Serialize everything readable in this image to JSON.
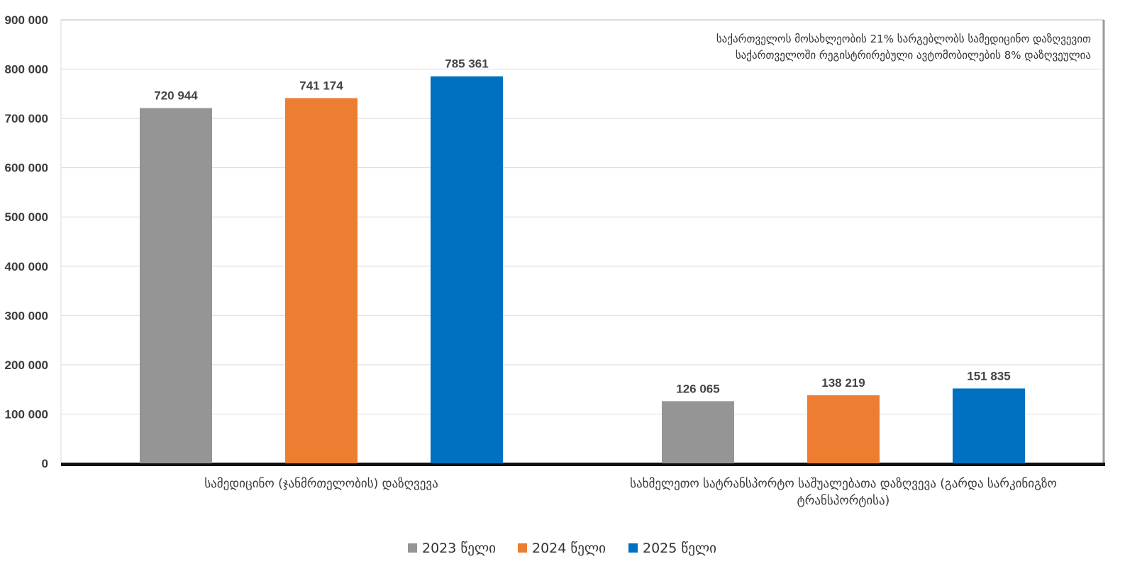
{
  "chart_data": {
    "type": "bar",
    "categories": [
      [
        "სამედიცინო (ჯანმრთელობის) დაზღვევა"
      ],
      [
        "სახმელეთო სატრანსპორტო საშუალებათა დაზღვევა (გარდა სარკინიგზო",
        "ტრანსპორტისა)"
      ]
    ],
    "series": [
      {
        "name": "2023 წელი",
        "color": "#959595",
        "values": [
          720944,
          126065
        ],
        "labels": [
          "720 944",
          "126 065"
        ]
      },
      {
        "name": "2024 წელი",
        "color": "#ED7D31",
        "values": [
          741174,
          138219
        ],
        "labels": [
          "741 174",
          "138 219"
        ]
      },
      {
        "name": "2025 წელი",
        "color": "#0070C0",
        "values": [
          785361,
          151835
        ],
        "labels": [
          "785 361",
          "151 835"
        ]
      }
    ],
    "ylim": [
      0,
      900000
    ],
    "yticks": [
      0,
      100000,
      200000,
      300000,
      400000,
      500000,
      600000,
      700000,
      800000,
      900000
    ],
    "ytick_labels": [
      "0",
      "100 000",
      "200 000",
      "300 000",
      "400 000",
      "500 000",
      "600 000",
      "700 000",
      "800 000",
      "900 000"
    ],
    "annotations": [
      "საქართველოს მოსახლეობის 21% სარგებლობს სამედიცინო დაზღვევით",
      "საქართველოში რეგისტრირებული ავტომობილების  8% დაზღვეულია"
    ],
    "grid": true,
    "legend_position": "bottom"
  }
}
